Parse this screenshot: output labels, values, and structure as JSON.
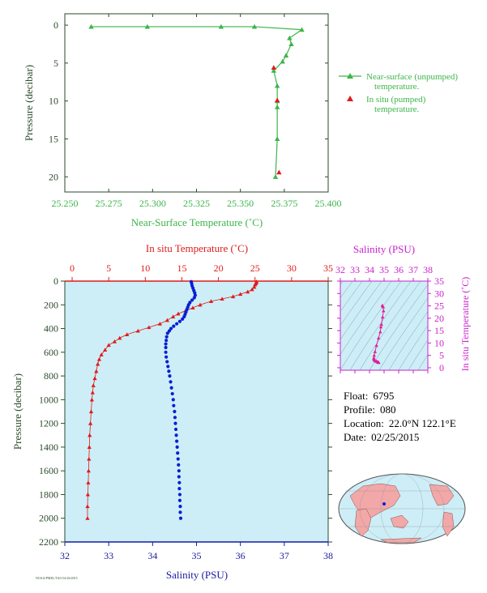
{
  "colors": {
    "near_surface": "#3cb54a",
    "in_situ_temp": "#e01b1b",
    "salinity": "#0a1ed2",
    "salinity_axis": "#1a1aa0",
    "ts_pink": "#e0209c",
    "panel_bg": "#cdeef7",
    "axis_dark": "#2b4a2b",
    "magenta": "#cc22cc"
  },
  "info": {
    "float_label": "Float:",
    "float_value": "6795",
    "profile_label": "Profile:",
    "profile_value": "080",
    "location_label": "Location:",
    "location_value": "22.0°N  122.1°E",
    "date_label": "Date:",
    "date_value": "02/25/2015"
  },
  "footer_code": "NOAA/PMEL/TAO 02/26/2015",
  "chart_data": [
    {
      "type": "line",
      "id": "near_surface",
      "xlabel": "Near-Surface Temperature (˚C)",
      "ylabel": "Pressure (decibar)",
      "xlim": [
        25.25,
        25.4
      ],
      "ylim": [
        22,
        -1.5
      ],
      "xticks": [
        "25.250",
        "25.275",
        "25.300",
        "25.325",
        "25.350",
        "25.375",
        "25.400"
      ],
      "xtick_values": [
        25.25,
        25.275,
        25.3,
        25.325,
        25.35,
        25.375,
        25.4
      ],
      "yticks": [
        0,
        5,
        10,
        15,
        20
      ],
      "series": [
        {
          "name": "Near-surface (unpumped) temperature.",
          "marker": "triangle",
          "x": [
            25.265,
            25.297,
            25.339,
            25.358,
            25.385,
            25.378,
            25.379,
            25.376,
            25.374,
            25.369,
            25.371,
            25.371,
            25.371,
            25.371,
            25.37
          ],
          "y": [
            0.2,
            0.2,
            0.2,
            0.2,
            0.6,
            1.7,
            2.5,
            4.0,
            4.8,
            6.0,
            8.0,
            10.0,
            10.8,
            15.0,
            20.0
          ]
        },
        {
          "name": "In situ (pumped) temperature.",
          "marker": "triangle",
          "x": [
            25.369,
            25.371,
            25.372
          ],
          "y": [
            5.6,
            9.9,
            19.4
          ]
        }
      ],
      "legend": [
        "Near-surface (unpumped)",
        "temperature.",
        "In situ (pumped)",
        "temperature."
      ]
    },
    {
      "type": "scatter",
      "id": "profile",
      "title_top": "In situ Temperature (˚C)",
      "xlabel": "Salinity (PSU)",
      "ylabel": "Pressure (decibar)",
      "temp_lim": [
        -1,
        35
      ],
      "sal_lim": [
        32,
        38
      ],
      "ylim": [
        0,
        2200
      ],
      "temp_ticks": [
        0,
        5,
        10,
        15,
        20,
        25,
        30,
        35
      ],
      "sal_ticks": [
        32,
        33,
        34,
        35,
        36,
        37,
        38
      ],
      "pressure_ticks": [
        0,
        200,
        400,
        600,
        800,
        1000,
        1200,
        1400,
        1600,
        1800,
        2000,
        2200
      ],
      "temperature": {
        "p": [
          5,
          10,
          20,
          30,
          50,
          70,
          90,
          110,
          130,
          150,
          170,
          200,
          225,
          250,
          275,
          300,
          330,
          360,
          390,
          420,
          450,
          480,
          510,
          540,
          580,
          620,
          660,
          700,
          760,
          820,
          880,
          940,
          1000,
          1100,
          1200,
          1300,
          1400,
          1500,
          1600,
          1700,
          1800,
          1900,
          2000
        ],
        "t": [
          25.2,
          25.2,
          25.1,
          25.0,
          24.9,
          24.6,
          24.0,
          23.0,
          22.0,
          20.5,
          19.0,
          17.5,
          16.5,
          15.5,
          14.5,
          13.8,
          13.0,
          12.0,
          10.5,
          9.0,
          7.5,
          6.5,
          5.8,
          5.0,
          4.5,
          4.0,
          3.7,
          3.5,
          3.3,
          3.1,
          2.9,
          2.8,
          2.7,
          2.6,
          2.5,
          2.4,
          2.35,
          2.3,
          2.25,
          2.2,
          2.15,
          2.1,
          2.1
        ]
      },
      "salinity": {
        "p": [
          5,
          20,
          40,
          60,
          80,
          100,
          120,
          140,
          160,
          180,
          200,
          220,
          240,
          260,
          280,
          300,
          320,
          340,
          360,
          380,
          400,
          420,
          440,
          470,
          500,
          530,
          560,
          600,
          640,
          680,
          720,
          760,
          800,
          850,
          900,
          950,
          1000,
          1050,
          1100,
          1150,
          1200,
          1250,
          1300,
          1350,
          1400,
          1450,
          1500,
          1550,
          1600,
          1650,
          1700,
          1750,
          1800,
          1850,
          1900,
          1950,
          2000
        ],
        "s": [
          34.88,
          34.89,
          34.9,
          34.92,
          34.94,
          34.96,
          34.97,
          34.95,
          34.9,
          34.85,
          34.82,
          34.8,
          34.78,
          34.76,
          34.74,
          34.72,
          34.68,
          34.62,
          34.55,
          34.48,
          34.42,
          34.38,
          34.34,
          34.32,
          34.31,
          34.3,
          34.3,
          34.3,
          34.31,
          34.33,
          34.35,
          34.37,
          34.39,
          34.41,
          34.43,
          34.45,
          34.47,
          34.48,
          34.5,
          34.51,
          34.52,
          34.53,
          34.54,
          34.55,
          34.56,
          34.57,
          34.58,
          34.59,
          34.6,
          34.6,
          34.61,
          34.61,
          34.62,
          34.62,
          34.63,
          34.63,
          34.64
        ]
      }
    },
    {
      "type": "scatter",
      "id": "ts_diagram",
      "title_top": "Salinity (PSU)",
      "ylabel": "In situ Temperature (˚C)",
      "sal_ticks": [
        32,
        33,
        34,
        35,
        36,
        37,
        38
      ],
      "temp_ticks": [
        0,
        5,
        10,
        15,
        20,
        25,
        30,
        35
      ],
      "sal_lim": [
        32,
        38
      ],
      "temp_lim": [
        -1,
        35
      ],
      "points": {
        "s": [
          34.88,
          34.9,
          34.94,
          34.96,
          34.9,
          34.82,
          34.78,
          34.74,
          34.62,
          34.48,
          34.38,
          34.32,
          34.3,
          34.3,
          34.33,
          34.39,
          34.47,
          34.52,
          34.56,
          34.6,
          34.62,
          34.64
        ],
        "t": [
          25.2,
          25.0,
          24.6,
          23.0,
          20.5,
          17.5,
          16.5,
          14.5,
          12.0,
          9.0,
          6.5,
          5.0,
          4.0,
          3.5,
          3.1,
          2.8,
          2.6,
          2.5,
          2.35,
          2.2,
          2.15,
          2.1
        ]
      }
    }
  ]
}
